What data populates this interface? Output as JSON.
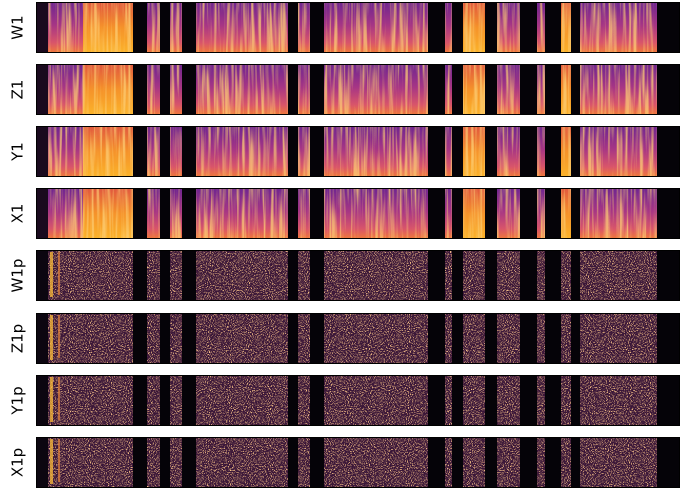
{
  "panels": [
    "W1",
    "Z1",
    "Y1",
    "X1",
    "W1p",
    "Z1p",
    "Y1p",
    "X1p"
  ]
}
